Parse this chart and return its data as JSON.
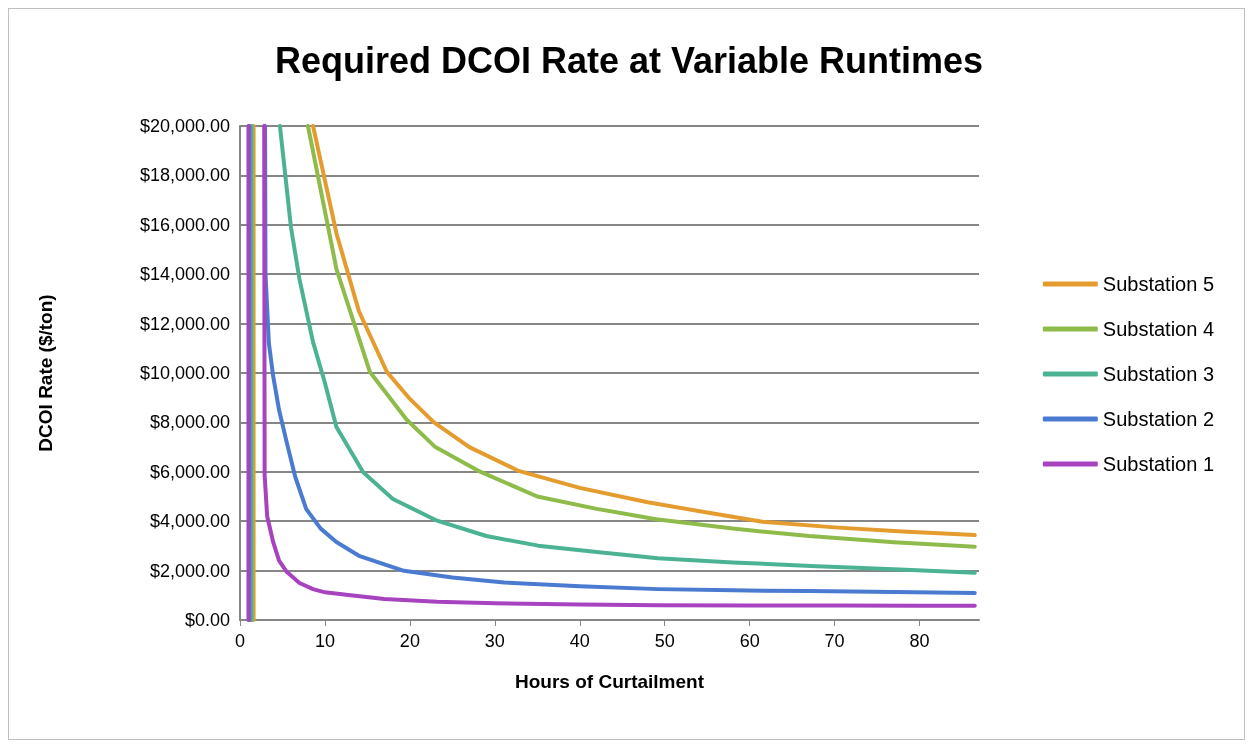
{
  "chart_data": {
    "type": "line",
    "title": "Required DCOI Rate at Variable Runtimes",
    "xlabel": "Hours of Curtailment",
    "ylabel": "DCOI Rate ($/ton)",
    "xlim": [
      0,
      87
    ],
    "xticks": [
      0,
      10,
      20,
      30,
      40,
      50,
      60,
      70,
      80
    ],
    "ylim": [
      0,
      20000
    ],
    "yticks": [
      {
        "value": 0,
        "label": "$0.00"
      },
      {
        "value": 2000,
        "label": "$2,000.00"
      },
      {
        "value": 4000,
        "label": "$4,000.00"
      },
      {
        "value": 6000,
        "label": "$6,000.00"
      },
      {
        "value": 8000,
        "label": "$8,000.00"
      },
      {
        "value": 10000,
        "label": "$10,000.00"
      },
      {
        "value": 12000,
        "label": "$12,000.00"
      },
      {
        "value": 14000,
        "label": "$14,000.00"
      },
      {
        "value": 16000,
        "label": "$16,000.00"
      },
      {
        "value": 18000,
        "label": "$18,000.00"
      },
      {
        "value": 20000,
        "label": "$20,000.00"
      }
    ],
    "grid": "y",
    "legend": "right",
    "marker": "none",
    "line_style": "solid",
    "series": [
      {
        "name": "Substation 5",
        "color": "#e49c2f",
        "x": [
          1.6,
          1.6,
          5,
          8.6,
          11.35,
          14,
          17.3,
          20,
          22.8,
          27,
          32.7,
          40,
          48,
          55,
          61.5,
          70,
          78,
          86.5
        ],
        "values": [
          0,
          20000,
          null,
          20000,
          15660,
          12500,
          10040,
          8950,
          8010,
          7000,
          6050,
          5350,
          4770,
          4350,
          3980,
          3750,
          3580,
          3440
        ]
      },
      {
        "name": "Substation 4",
        "color": "#8fbb4a",
        "x": [
          1.4,
          1.4,
          5,
          8.0,
          11.35,
          15.3,
          19.6,
          23,
          28,
          35,
          42,
          49,
          58,
          67,
          77,
          86.5
        ],
        "values": [
          0,
          20000,
          null,
          20000,
          14220,
          10040,
          8120,
          7000,
          6050,
          5000,
          4500,
          4080,
          3700,
          3400,
          3150,
          2970
        ]
      },
      {
        "name": "Substation 3",
        "color": "#4bb394",
        "x": [
          1.3,
          1.3,
          3,
          4.7,
          6,
          7,
          8.6,
          10,
          11.35,
          14.5,
          18,
          23.2,
          29,
          35.1,
          42,
          49.2,
          58,
          67.2,
          77,
          86.5
        ],
        "values": [
          0,
          20000,
          null,
          20000,
          15900,
          13800,
          11250,
          9600,
          7810,
          5980,
          4900,
          4020,
          3400,
          3010,
          2750,
          2500,
          2330,
          2190,
          2050,
          1910
        ]
      },
      {
        "name": "Substation 2",
        "color": "#4a7bd0",
        "x": [
          1.1,
          1.1,
          2,
          2.95,
          3.0,
          3.4,
          3.9,
          4.6,
          5.5,
          6.5,
          7.8,
          9.5,
          11.35,
          14,
          19.3,
          25,
          31.1,
          40,
          49.2,
          58,
          67,
          77,
          86.5
        ],
        "values": [
          0,
          20000,
          null,
          20000,
          14000,
          11200,
          9880,
          8500,
          7190,
          5800,
          4490,
          3700,
          3160,
          2600,
          1990,
          1720,
          1520,
          1370,
          1250,
          1200,
          1170,
          1130,
          1090
        ]
      },
      {
        "name": "Substation 1",
        "color": "#a843c0",
        "x": [
          1.0,
          1.0,
          2,
          2.85,
          2.9,
          3.2,
          3.9,
          4.6,
          5.5,
          7,
          8.6,
          10,
          12.5,
          17,
          23.2,
          30,
          40,
          49.2,
          60,
          70,
          80,
          86.5
        ],
        "values": [
          0,
          20000,
          null,
          20000,
          5860,
          4200,
          3160,
          2400,
          1950,
          1500,
          1250,
          1120,
          1020,
          850,
          740,
          680,
          630,
          600,
          590,
          585,
          580,
          580
        ]
      }
    ]
  }
}
